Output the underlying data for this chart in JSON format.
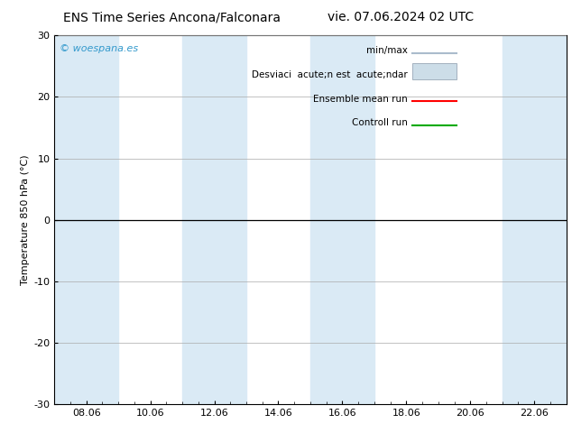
{
  "title": "ENS Time Series Ancona/Falconara",
  "title2": "vie. 07.06.2024 02 UTC",
  "ylabel": "Temperature 850 hPa (°C)",
  "ylim": [
    -30,
    30
  ],
  "yticks": [
    -30,
    -20,
    -10,
    0,
    10,
    20,
    30
  ],
  "xlabels": [
    "08.06",
    "10.06",
    "12.06",
    "14.06",
    "16.06",
    "18.06",
    "20.06",
    "22.06"
  ],
  "xtick_positions": [
    1,
    3,
    5,
    7,
    9,
    11,
    13,
    15
  ],
  "background_color": "#ffffff",
  "plot_bg_color": "#ffffff",
  "band_color": "#daeaf5",
  "zero_line_color": "#000000",
  "watermark": "© woespana.es",
  "watermark_color": "#3399cc",
  "legend_label1": "min/max",
  "legend_label2": "Desviaci  acute;n est  acute;ndar",
  "legend_label3": "Ensemble mean run",
  "legend_label4": "Controll run",
  "legend_color1": "#aabbcc",
  "legend_color2": "#ccdde8",
  "legend_color3": "#ff0000",
  "legend_color4": "#00aa00",
  "grid_color": "#aaaaaa",
  "xmin": 0,
  "xmax": 16,
  "band_specs": [
    [
      0,
      2
    ],
    [
      4,
      6
    ],
    [
      8,
      10
    ],
    [
      14,
      16
    ]
  ]
}
